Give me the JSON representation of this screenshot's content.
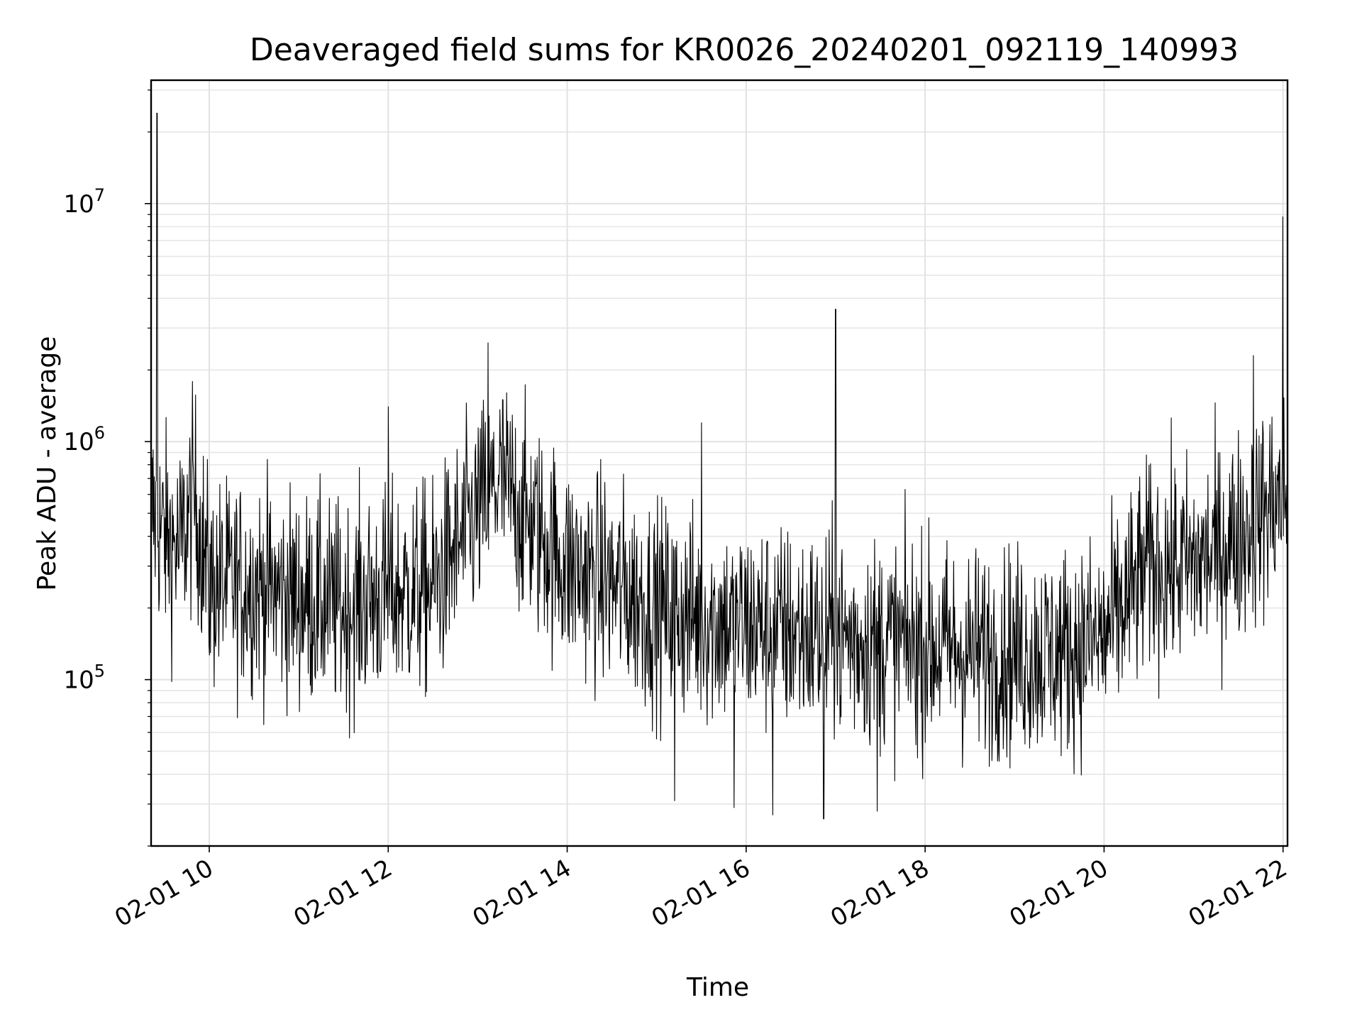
{
  "chart_data": {
    "type": "line",
    "title": "Deaveraged field sums for KR0026_20240201_092119_140993",
    "xlabel": "Time",
    "ylabel": "Peak ADU - average",
    "yscale": "log",
    "xlim": [
      "2024-02-01T09:21",
      "2024-02-01T22:03"
    ],
    "ylim": [
      20000,
      33000000
    ],
    "x_ticks": [
      "02-01 10",
      "02-01 12",
      "02-01 14",
      "02-01 16",
      "02-01 18",
      "02-01 20",
      "02-01 22"
    ],
    "y_ticks": [
      {
        "base": "10",
        "exp": "5",
        "value": 100000
      },
      {
        "base": "10",
        "exp": "6",
        "value": 1000000
      },
      {
        "base": "10",
        "exp": "7",
        "value": 10000000
      }
    ],
    "grid": true,
    "series_color": "#000000",
    "series": [
      {
        "x": [
          "2024-02-01T09:22",
          "2024-02-01T09:30",
          "2024-02-01T09:40",
          "2024-02-01T09:50",
          "2024-02-01T10:00",
          "2024-02-01T10:30",
          "2024-02-01T11:00",
          "2024-02-01T11:30",
          "2024-02-01T12:00",
          "2024-02-01T12:30",
          "2024-02-01T13:00",
          "2024-02-01T13:15",
          "2024-02-01T13:30",
          "2024-02-01T14:00",
          "2024-02-01T14:30",
          "2024-02-01T15:00",
          "2024-02-01T15:30",
          "2024-02-01T16:00",
          "2024-02-01T16:30",
          "2024-02-01T17:00",
          "2024-02-01T17:30",
          "2024-02-01T18:00",
          "2024-02-01T18:30",
          "2024-02-01T19:00",
          "2024-02-01T19:30",
          "2024-02-01T20:00",
          "2024-02-01T20:30",
          "2024-02-01T21:00",
          "2024-02-01T21:30",
          "2024-02-01T22:00"
        ],
        "y": [
          500000,
          400000,
          350000,
          600000,
          250000,
          250000,
          220000,
          200000,
          230000,
          240000,
          500000,
          700000,
          500000,
          300000,
          250000,
          200000,
          180000,
          170000,
          160000,
          150000,
          145000,
          140000,
          130000,
          130000,
          130000,
          150000,
          300000,
          300000,
          400000,
          600000
        ]
      }
    ],
    "spikes": [
      {
        "x": "2024-02-01T09:25",
        "y": 24000000
      },
      {
        "x": "2024-02-01T12:00",
        "y": 1400000
      },
      {
        "x": "2024-02-01T13:07",
        "y": 2600000
      },
      {
        "x": "2024-02-01T15:30",
        "y": 1200000
      },
      {
        "x": "2024-02-01T17:00",
        "y": 3600000
      },
      {
        "x": "2024-02-01T21:40",
        "y": 2300000
      },
      {
        "x": "2024-02-01T22:00",
        "y": 8800000
      }
    ],
    "dips": [
      {
        "x": "2024-02-01T15:12",
        "y": 31000
      },
      {
        "x": "2024-02-01T15:52",
        "y": 29000
      },
      {
        "x": "2024-02-01T16:18",
        "y": 27000
      },
      {
        "x": "2024-02-01T16:52",
        "y": 26000
      },
      {
        "x": "2024-02-01T17:28",
        "y": 28000
      }
    ]
  }
}
